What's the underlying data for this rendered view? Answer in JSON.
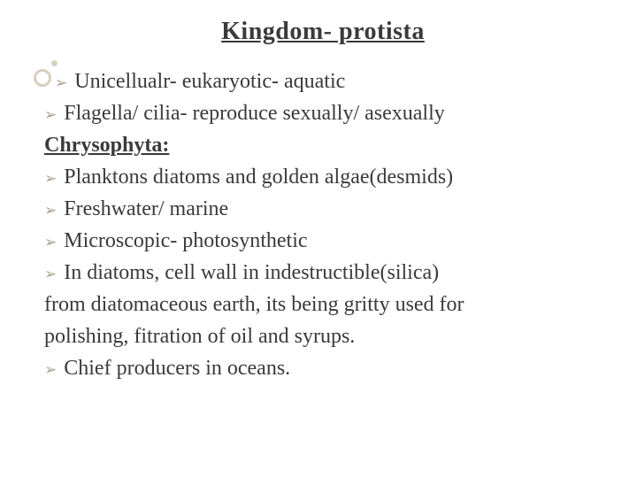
{
  "slide": {
    "title": "Kingdom- protista",
    "title_color": "#3a3a3a",
    "title_fontsize": 28,
    "background_color": "#ffffff",
    "bullet_color": "#a8a090",
    "text_color": "#3a3a3a",
    "body_fontsize": 24,
    "decoration": {
      "outline_circle_color": "#d8cfc0",
      "dot_color": "#d8cfc0"
    },
    "lines": [
      {
        "type": "bullet",
        "indent": true,
        "text": "Unicellualr- eukaryotic- aquatic"
      },
      {
        "type": "bullet",
        "indent": false,
        "text": "Flagella/ cilia- reproduce sexually/ asexually"
      },
      {
        "type": "subheading",
        "text": "Chrysophyta:"
      },
      {
        "type": "bullet",
        "indent": false,
        "text": "Planktons diatoms and golden algae(desmids)"
      },
      {
        "type": "bullet",
        "indent": false,
        "text": "Freshwater/ marine"
      },
      {
        "type": "bullet",
        "indent": false,
        "text": "Microscopic- photosynthetic"
      },
      {
        "type": "bullet",
        "indent": false,
        "text": "In diatoms, cell wall in indestructible(silica)"
      },
      {
        "type": "continuation",
        "text": "from diatomaceous earth, its being gritty used for"
      },
      {
        "type": "continuation",
        "text": "polishing, fitration of oil and syrups."
      },
      {
        "type": "bullet",
        "indent": false,
        "text": "Chief producers in oceans."
      }
    ]
  }
}
